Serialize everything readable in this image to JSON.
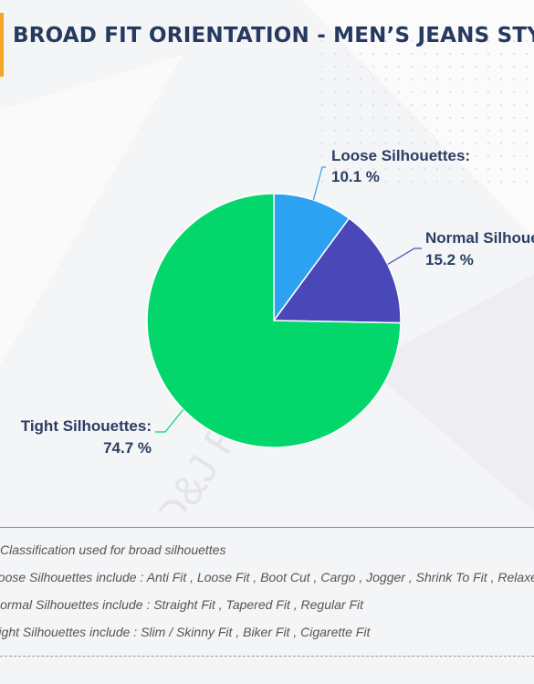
{
  "header": {
    "title": "BROAD FIT ORIENTATION - MEN’S JEANS STYLES"
  },
  "watermark": "D&J Reports",
  "chart_data": {
    "type": "pie",
    "title": "BROAD FIT ORIENTATION - MEN’S JEANS STYLES",
    "slices": [
      {
        "label": "Loose Silhouettes:",
        "value": 10.1,
        "value_label": "10.1 %",
        "color": "#2da1f2"
      },
      {
        "label": "Normal Silhouettes:",
        "value": 15.2,
        "value_label": "15.2 %",
        "color": "#4a48b8"
      },
      {
        "label": "Tight Silhouettes:",
        "value": 74.7,
        "value_label": "74.7 %",
        "color": "#03d66b"
      }
    ],
    "start_angle_deg": 0,
    "direction": "clockwise"
  },
  "notes": {
    "heading": "Classification used for broad silhouettes",
    "loose": "Loose Silhouettes include : Anti Fit , Loose Fit , Boot Cut , Cargo , Jogger , Shrink To Fit , Relaxed Fit",
    "normal": "Normal Silhouettes include : Straight Fit , Tapered Fit , Regular Fit",
    "tight": "Tight Silhouettes include : Slim / Skinny Fit , Biker Fit , Cigarette Fit"
  },
  "colors": {
    "title": "#26395f",
    "label": "#2b3e63",
    "accent": "#f5a623",
    "leader_loose": "#2da1f2",
    "leader_normal": "#4a48b8",
    "leader_tight": "#03d66b"
  }
}
